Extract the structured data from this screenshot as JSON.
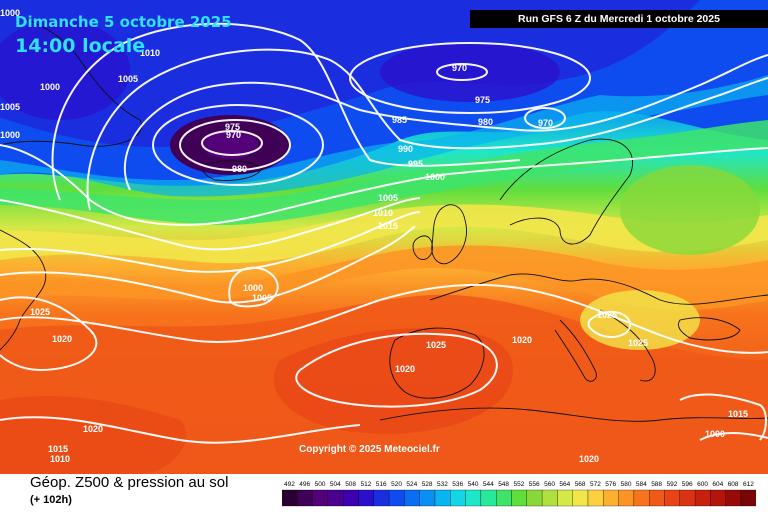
{
  "header": {
    "date_line": "Dimanche 5 octobre 2025",
    "time_line": "14:00 locale",
    "run_info": "Run GFS 6 Z du Mercredi 1 octobre 2025"
  },
  "copyright": "Copyright © 2025 Meteociel.fr",
  "footer": {
    "title": "Géop. Z500 & pression au sol",
    "lead_time": "(+ 102h)"
  },
  "scale": {
    "labels": [
      "492",
      "496",
      "500",
      "504",
      "508",
      "512",
      "516",
      "520",
      "524",
      "528",
      "532",
      "536",
      "540",
      "544",
      "548",
      "552",
      "556",
      "560",
      "564",
      "568",
      "572",
      "576",
      "580",
      "584",
      "588",
      "592",
      "596",
      "600",
      "604",
      "608",
      "612"
    ],
    "colors": [
      "#2a0033",
      "#3f0056",
      "#540078",
      "#4b0090",
      "#3d00b0",
      "#2a10cc",
      "#1a2ee0",
      "#0f4cf0",
      "#0a6ef5",
      "#0a90f5",
      "#0ab4f0",
      "#12d6e6",
      "#1ee6c8",
      "#2ae89a",
      "#3ee46a",
      "#60de3c",
      "#88d83a",
      "#b0e040",
      "#d4e848",
      "#f2e64a",
      "#fcd040",
      "#fcb030",
      "#fc9424",
      "#f8741c",
      "#f05a18",
      "#e84416",
      "#da3214",
      "#c8200e",
      "#b4140a",
      "#980a08",
      "#780606"
    ]
  },
  "isobars": [
    {
      "text": "1000",
      "cls": "w"
    },
    {
      "text": "1005",
      "cls": "w"
    },
    {
      "text": "1010",
      "cls": "w"
    },
    {
      "text": "1000",
      "cls": "w"
    },
    {
      "text": "1000",
      "cls": "w"
    },
    {
      "text": "1005",
      "cls": "w"
    },
    {
      "text": "975",
      "cls": "w"
    },
    {
      "text": "970",
      "cls": "w"
    },
    {
      "text": "980",
      "cls": "w"
    },
    {
      "text": "970",
      "cls": "w"
    },
    {
      "text": "975",
      "cls": "w"
    },
    {
      "text": "980",
      "cls": "w"
    },
    {
      "text": "970",
      "cls": "w"
    },
    {
      "text": "985",
      "cls": "w"
    },
    {
      "text": "990",
      "cls": "w"
    },
    {
      "text": "995",
      "cls": "w"
    },
    {
      "text": "1000",
      "cls": "w"
    },
    {
      "text": "1005",
      "cls": "w"
    },
    {
      "text": "1010",
      "cls": "w"
    },
    {
      "text": "1015",
      "cls": "w"
    },
    {
      "text": "1000",
      "cls": "w"
    },
    {
      "text": "1005",
      "cls": "w"
    },
    {
      "text": "1025",
      "cls": "w"
    },
    {
      "text": "1020",
      "cls": "w"
    },
    {
      "text": "1025",
      "cls": "w"
    },
    {
      "text": "1020",
      "cls": "w"
    },
    {
      "text": "1020",
      "cls": "w"
    },
    {
      "text": "1025",
      "cls": "w"
    },
    {
      "text": "1025",
      "cls": "w"
    },
    {
      "text": "1020",
      "cls": "w"
    },
    {
      "text": "1015",
      "cls": "w"
    },
    {
      "text": "1010",
      "cls": "w"
    },
    {
      "text": "1015",
      "cls": "w"
    },
    {
      "text": "1020",
      "cls": "w"
    },
    {
      "text": "1000",
      "cls": "w"
    }
  ]
}
